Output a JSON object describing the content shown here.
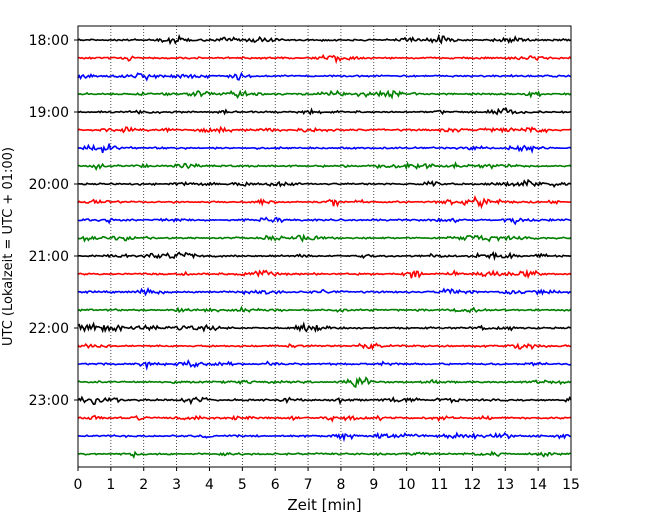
{
  "chart_data": {
    "type": "line",
    "title": "",
    "xlabel": "Zeit  [min]",
    "ylabel": "UTC (Lokalzeit = UTC + 01:00)",
    "xlim": [
      0,
      15
    ],
    "x_ticks": [
      "0",
      "1",
      "2",
      "3",
      "4",
      "5",
      "6",
      "7",
      "8",
      "9",
      "10",
      "11",
      "12",
      "13",
      "14",
      "15"
    ],
    "y_tick_labels": [
      "18:00",
      "19:00",
      "20:00",
      "21:00",
      "22:00",
      "23:00"
    ],
    "trace_interval_minutes": 15,
    "traces_per_hour": 4,
    "trace_start_times": [
      "18:00",
      "18:15",
      "18:30",
      "18:45",
      "19:00",
      "19:15",
      "19:30",
      "19:45",
      "20:00",
      "20:15",
      "20:30",
      "20:45",
      "21:00",
      "21:15",
      "21:30",
      "21:45",
      "22:00",
      "22:15",
      "22:30",
      "22:45",
      "23:00",
      "23:15",
      "23:30",
      "23:45"
    ],
    "color_cycle": [
      "#000000",
      "#ff0000",
      "#0000ff",
      "#008000"
    ],
    "grid": {
      "x": "dotted",
      "y": false
    },
    "events": [
      {
        "trace": "18:45",
        "minute": 9.5
      },
      {
        "trace": "20:15",
        "minute": 7.8
      },
      {
        "trace": "20:30",
        "minute": 13.2
      },
      {
        "trace": "21:15",
        "minute": 10.2
      },
      {
        "trace": "21:30",
        "minute": 2.0
      },
      {
        "trace": "22:30",
        "minute": 5.9
      },
      {
        "trace": "23:15",
        "minute": 0.5
      },
      {
        "trace": "23:30",
        "minute": 9.3
      }
    ]
  }
}
